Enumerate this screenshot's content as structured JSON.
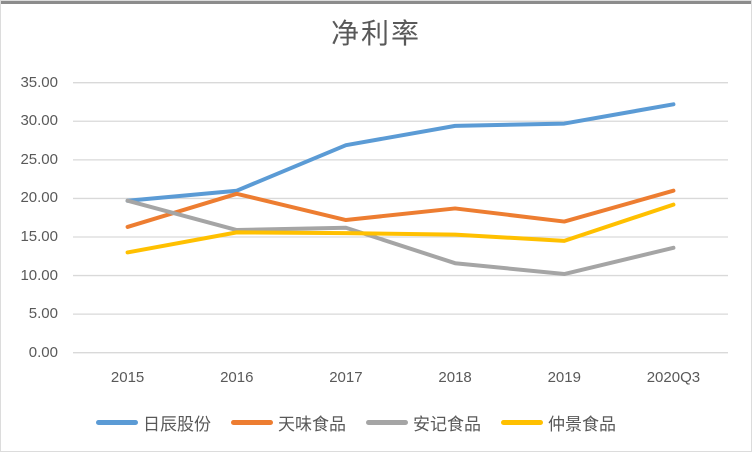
{
  "title": "净利率",
  "chart_data": {
    "type": "line",
    "title": "净利率",
    "categories": [
      "2015",
      "2016",
      "2017",
      "2018",
      "2019",
      "2020Q3"
    ],
    "series": [
      {
        "name": "日辰股份",
        "color": "#5B9BD5",
        "values": [
          19.7,
          21.0,
          26.9,
          29.4,
          29.7,
          32.2
        ]
      },
      {
        "name": "天味食品",
        "color": "#ED7D31",
        "values": [
          16.3,
          20.6,
          17.2,
          18.7,
          17.0,
          21.0
        ]
      },
      {
        "name": "安记食品",
        "color": "#A5A5A5",
        "values": [
          19.7,
          15.9,
          16.2,
          11.6,
          10.2,
          13.6
        ]
      },
      {
        "name": "仲景食品",
        "color": "#FFC000",
        "values": [
          13.0,
          15.6,
          15.5,
          15.3,
          14.5,
          19.2
        ]
      }
    ],
    "ylim": [
      0,
      35
    ],
    "ytick_step": 5,
    "ytick_labels": [
      "0.00",
      "5.00",
      "10.00",
      "15.00",
      "20.00",
      "25.00",
      "30.00",
      "35.00"
    ],
    "xlabel": "",
    "ylabel": "",
    "grid": "horizontal",
    "legend_position": "bottom"
  },
  "colors": {
    "gridline": "#D9D9D9",
    "axis_text": "#595959",
    "background": "#FFFFFF",
    "top_border": "#8C8C8C"
  }
}
